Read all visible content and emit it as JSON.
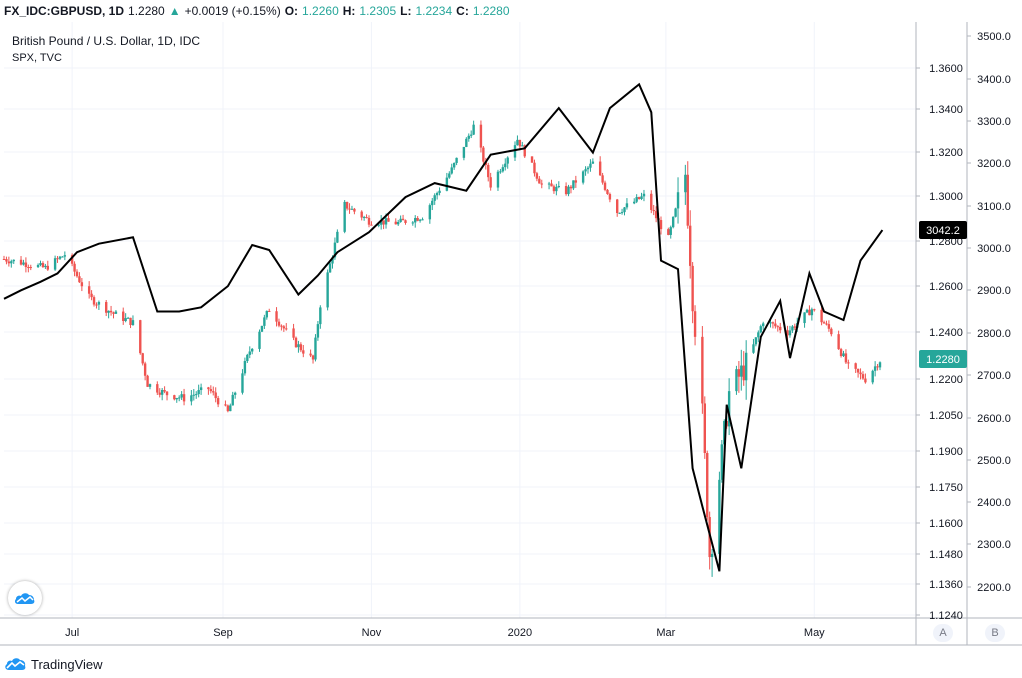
{
  "header": {
    "symbol": "FX_IDC:GBPUSD, 1D",
    "last": "1.2280",
    "change_arrow": "▲",
    "change": "+0.0019 (+0.15%)",
    "o_label": "O:",
    "o_value": "1.2260",
    "h_label": "H:",
    "h_value": "1.2305",
    "l_label": "L:",
    "l_value": "1.2234",
    "c_label": "C:",
    "c_value": "1.2280"
  },
  "legend": {
    "title": "British Pound / U.S. Dollar, 1D, IDC",
    "overlay": "SPX, TVC"
  },
  "footer": {
    "brand": "TradingView",
    "logo_icon": "tradingview-logo-icon"
  },
  "buttons": {
    "scale_a": "A",
    "scale_b": "B"
  },
  "colors": {
    "up": "#26a69a",
    "down": "#ef5350",
    "spx": "#000000"
  },
  "chart_data": [
    {
      "type": "candlestick",
      "title": "British Pound / U.S. Dollar, 1D, IDC",
      "series_name": "GBPUSD",
      "axis": "right-inner",
      "y_ticks": [
        "1.3600",
        "1.3400",
        "1.3200",
        "1.3000",
        "1.2800",
        "1.2600",
        "1.2400",
        "1.2200",
        "1.2050",
        "1.1900",
        "1.1750",
        "1.1600",
        "1.1480",
        "1.1360",
        "1.1240"
      ],
      "last_value_label": "1.2280",
      "x_ticks": [
        "Jul",
        "Sep",
        "Nov",
        "2020",
        "Mar",
        "May"
      ],
      "ohlc_last": {
        "o": 1.226,
        "h": 1.2305,
        "l": 1.2234,
        "c": 1.228
      },
      "close_path": [
        [
          "2019-06-03",
          1.272
        ],
        [
          "2019-06-12",
          1.27
        ],
        [
          "2019-06-20",
          1.268
        ],
        [
          "2019-06-28",
          1.274
        ],
        [
          "2019-07-08",
          1.255
        ],
        [
          "2019-07-18",
          1.248
        ],
        [
          "2019-07-26",
          1.244
        ],
        [
          "2019-08-01",
          1.218
        ],
        [
          "2019-08-08",
          1.214
        ],
        [
          "2019-08-16",
          1.212
        ],
        [
          "2019-08-26",
          1.216
        ],
        [
          "2019-09-03",
          1.206
        ],
        [
          "2019-09-12",
          1.232
        ],
        [
          "2019-09-20",
          1.25
        ],
        [
          "2019-09-30",
          1.236
        ],
        [
          "2019-10-08",
          1.228
        ],
        [
          "2019-10-11",
          1.252
        ],
        [
          "2019-10-21",
          1.296
        ],
        [
          "2019-10-31",
          1.289
        ],
        [
          "2019-11-12",
          1.288
        ],
        [
          "2019-11-22",
          1.291
        ],
        [
          "2019-12-04",
          1.312
        ],
        [
          "2019-12-13",
          1.332
        ],
        [
          "2019-12-20",
          1.305
        ],
        [
          "2019-12-31",
          1.326
        ],
        [
          "2020-01-10",
          1.305
        ],
        [
          "2020-01-20",
          1.302
        ],
        [
          "2020-01-31",
          1.315
        ],
        [
          "2020-02-10",
          1.293
        ],
        [
          "2020-02-21",
          1.3
        ],
        [
          "2020-03-02",
          1.281
        ],
        [
          "2020-03-09",
          1.31
        ],
        [
          "2020-03-12",
          1.255
        ],
        [
          "2020-03-16",
          1.205
        ],
        [
          "2020-03-19",
          1.148
        ],
        [
          "2020-03-20",
          1.154
        ],
        [
          "2020-03-27",
          1.214
        ],
        [
          "2020-04-03",
          1.226
        ],
        [
          "2020-04-10",
          1.245
        ],
        [
          "2020-04-20",
          1.24
        ],
        [
          "2020-04-30",
          1.25
        ],
        [
          "2020-05-08",
          1.24
        ],
        [
          "2020-05-15",
          1.225
        ],
        [
          "2020-05-22",
          1.22
        ],
        [
          "2020-05-28",
          1.228
        ]
      ]
    },
    {
      "type": "line",
      "series_name": "SPX, TVC",
      "axis": "right-outer",
      "y_ticks": [
        "3500.0",
        "3400.0",
        "3300.0",
        "3200.0",
        "3100.0",
        "3000.0",
        "2900.0",
        "2800.0",
        "2700.0",
        "2600.0",
        "2500.0",
        "2400.0",
        "2300.0",
        "2200.0"
      ],
      "last_value_label": "3042.2",
      "x": [
        "2019-06-03",
        "2019-06-10",
        "2019-06-18",
        "2019-06-25",
        "2019-07-03",
        "2019-07-12",
        "2019-07-26",
        "2019-08-05",
        "2019-08-14",
        "2019-08-23",
        "2019-09-03",
        "2019-09-13",
        "2019-09-20",
        "2019-10-02",
        "2019-10-10",
        "2019-10-18",
        "2019-10-31",
        "2019-11-15",
        "2019-11-27",
        "2019-12-10",
        "2019-12-20",
        "2020-01-03",
        "2020-01-17",
        "2020-01-31",
        "2020-02-07",
        "2020-02-19",
        "2020-02-24",
        "2020-02-28",
        "2020-03-06",
        "2020-03-12",
        "2020-03-16",
        "2020-03-23",
        "2020-03-26",
        "2020-04-01",
        "2020-04-09",
        "2020-04-17",
        "2020-04-21",
        "2020-04-29",
        "2020-05-05",
        "2020-05-13",
        "2020-05-20",
        "2020-05-29"
      ],
      "y": [
        2880,
        2900,
        2920,
        2940,
        2990,
        3010,
        3025,
        2850,
        2850,
        2860,
        2910,
        3007,
        2995,
        2890,
        2935,
        2990,
        3037,
        3120,
        3153,
        3135,
        3220,
        3235,
        3330,
        3225,
        3330,
        3386,
        3320,
        2970,
        2950,
        2480,
        2390,
        2237,
        2630,
        2480,
        2790,
        2875,
        2740,
        2940,
        2850,
        2830,
        2970,
        3042
      ]
    }
  ]
}
